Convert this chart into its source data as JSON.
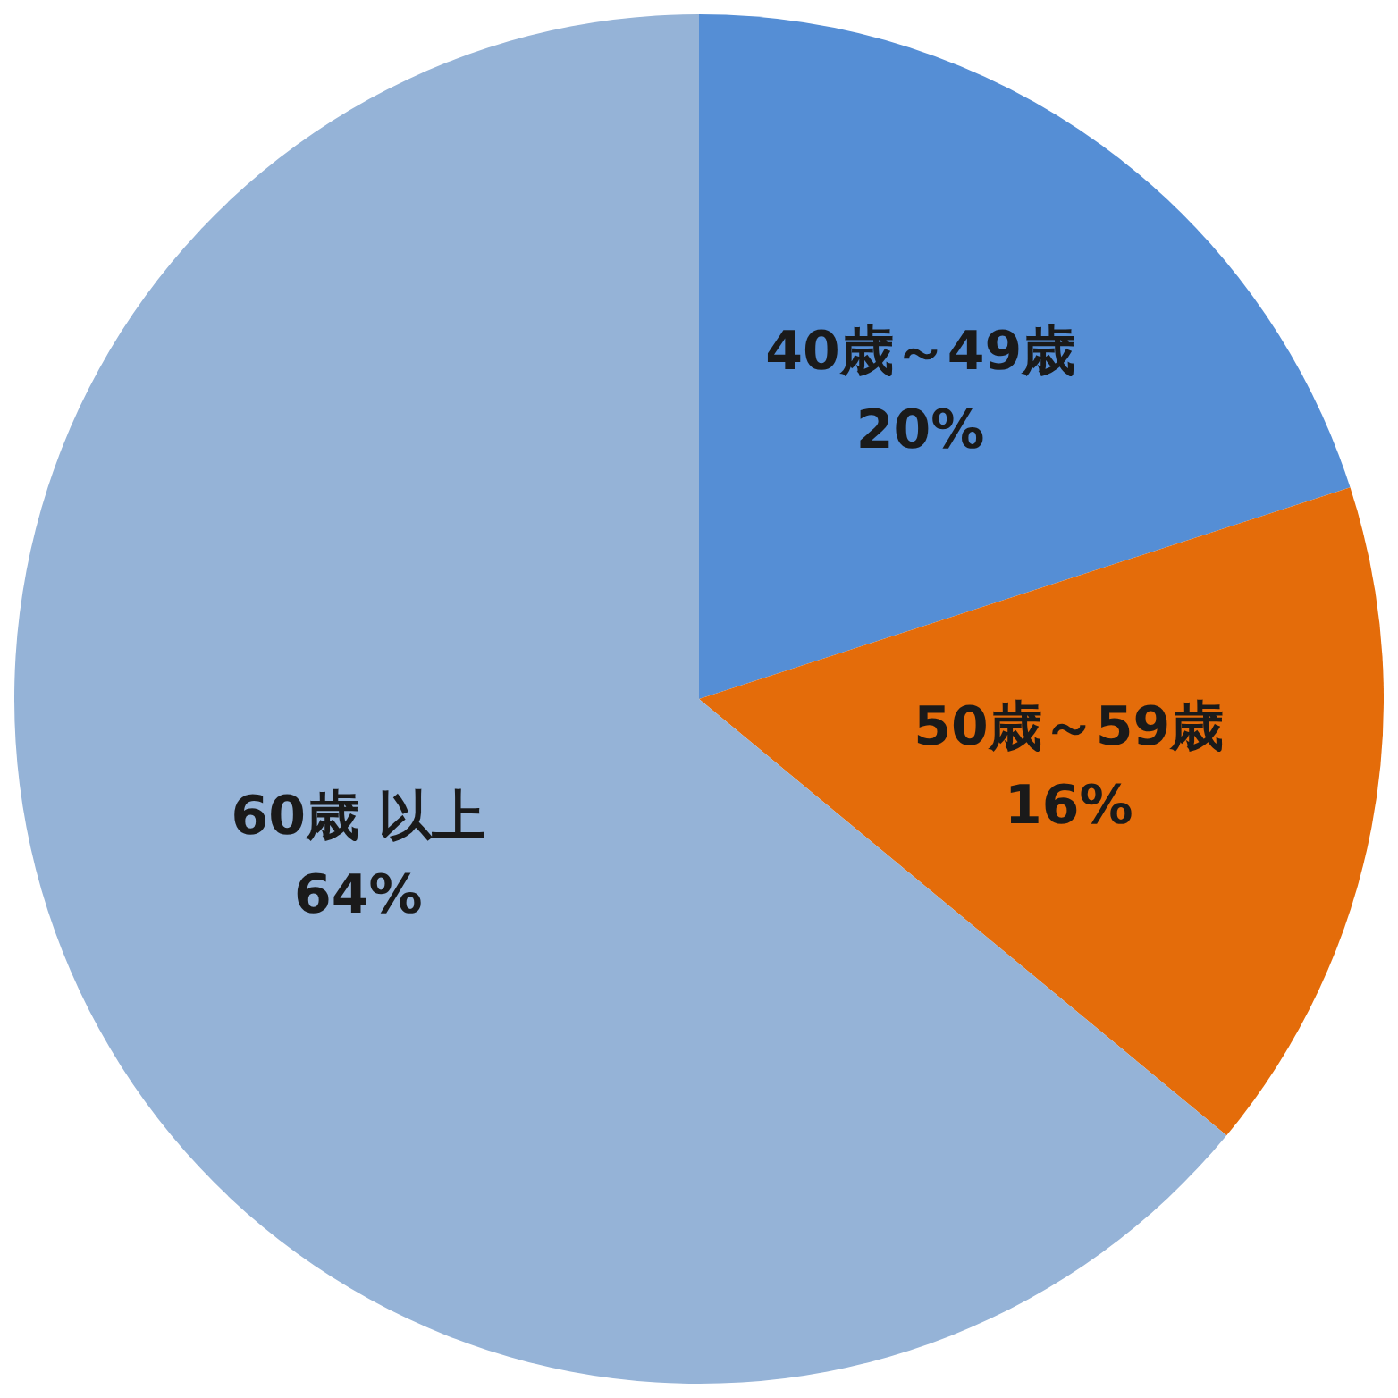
{
  "chart_data": {
    "type": "pie",
    "categories": [
      "40歳～49歳",
      "50歳～59歳",
      "60歳 以上"
    ],
    "values": [
      20,
      16,
      64
    ],
    "value_labels": [
      "20%",
      "16%",
      "64%"
    ],
    "colors": [
      "#558ed5",
      "#e46c0a",
      "#95b3d7"
    ],
    "legend": false
  }
}
